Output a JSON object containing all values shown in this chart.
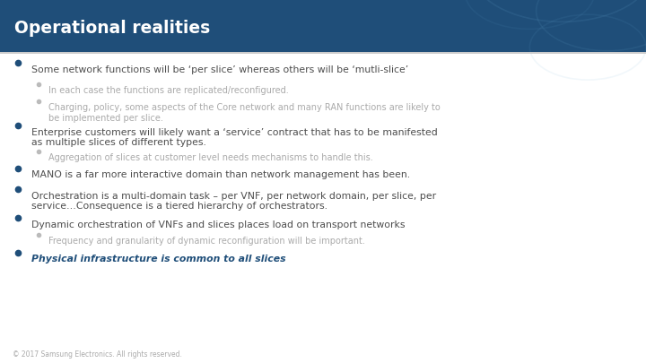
{
  "title": "Operational realities",
  "title_bg_color": "#1F4E79",
  "title_text_color": "#FFFFFF",
  "slide_bg_color": "#FFFFFF",
  "footer_text": "© 2017 Samsung Electronics. All rights reserved.",
  "bullet_color": "#1F4E79",
  "text_color": "#4D4D4D",
  "sub_text_color": "#AAAAAA",
  "bullets": [
    {
      "type": "main",
      "text": "Some network functions will be ‘per slice’ whereas others will be ‘mutli-slice’",
      "has_bold": true
    },
    {
      "type": "sub",
      "text": "In each case the functions are replicated/reconfigured."
    },
    {
      "type": "sub",
      "text": "Charging, policy, some aspects of the Core network and many RAN functions are likely to\nbe implemented per slice."
    },
    {
      "type": "main",
      "text": "Enterprise customers will likely want a ‘service’ contract that has to be manifested\nas multiple slices of different types.",
      "has_bold": false
    },
    {
      "type": "sub",
      "text": "Aggregation of slices at customer level needs mechanisms to handle this."
    },
    {
      "type": "main",
      "text": "MANO is a far more interactive domain than network management has been.",
      "has_bold": false
    },
    {
      "type": "main",
      "text": "Orchestration is a multi-domain task – per VNF, per network domain, per slice, per\nservice…Consequence is a tiered hierarchy of orchestrators.",
      "has_bold": false
    },
    {
      "type": "main",
      "text": "Dynamic orchestration of VNFs and slices places load on transport networks",
      "has_bold": false
    },
    {
      "type": "sub",
      "text": "Frequency and granularity of dynamic reconfiguration will be important."
    },
    {
      "type": "main_bold",
      "text": "Physical infrastructure is common to all slices",
      "has_bold": true
    }
  ]
}
